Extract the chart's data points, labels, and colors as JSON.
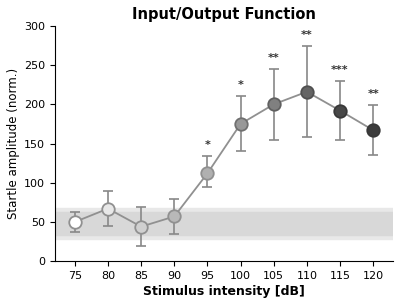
{
  "title": "Input/Output Function",
  "xlabel": "Stimulus intensity [dB]",
  "ylabel": "Startle amplitude (norm.)",
  "x": [
    75,
    80,
    85,
    90,
    95,
    100,
    105,
    110,
    115,
    120
  ],
  "y": [
    50,
    67,
    44,
    57,
    112,
    175,
    200,
    216,
    192,
    167
  ],
  "yerr_low": [
    13,
    22,
    25,
    22,
    18,
    35,
    45,
    58,
    38,
    32
  ],
  "yerr_high": [
    13,
    22,
    25,
    22,
    22,
    35,
    45,
    58,
    38,
    32
  ],
  "colors": [
    "#ffffff",
    "#e8e8e8",
    "#d0d0d0",
    "#b8b8b8",
    "#b0b0b0",
    "#989898",
    "#808080",
    "#646464",
    "#484848",
    "#3c3c3c"
  ],
  "edge_colors": [
    "#909090",
    "#909090",
    "#909090",
    "#909090",
    "#909090",
    "#707070",
    "#606060",
    "#505050",
    "#383838",
    "#383838"
  ],
  "annotations": {
    "95": "*",
    "100": "*",
    "105": "**",
    "110": "**",
    "115": "***",
    "120": "**"
  },
  "ylim": [
    0,
    300
  ],
  "xlim": [
    72,
    123
  ],
  "yticks": [
    0,
    50,
    100,
    150,
    200,
    250,
    300
  ],
  "xticks": [
    75,
    80,
    85,
    90,
    95,
    100,
    105,
    110,
    115,
    120
  ],
  "shade_ymin": 33,
  "shade_ymax": 63,
  "shade_color_outer": "#e8e8e8",
  "shade_color_inner": "#d8d8d8",
  "line_color": "#909090",
  "marker_size": 9,
  "figsize": [
    4.0,
    3.05
  ],
  "dpi": 100
}
